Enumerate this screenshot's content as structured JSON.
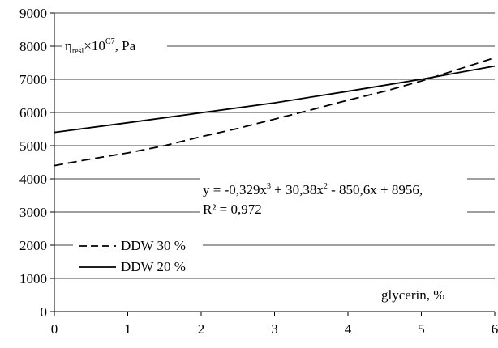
{
  "chart_data": {
    "type": "line",
    "ylabel_parts": {
      "eta": "η",
      "sub": "resl",
      "times_ten": "×10",
      "sup": "C7",
      "unit": ", Pa"
    },
    "xlabel": "glycerin, %",
    "xlim": [
      0,
      6
    ],
    "ylim": [
      0,
      9000
    ],
    "x_ticks": [
      0,
      1,
      2,
      3,
      4,
      5,
      6
    ],
    "y_ticks": [
      0,
      1000,
      2000,
      3000,
      4000,
      5000,
      6000,
      7000,
      8000,
      9000
    ],
    "grid": {
      "horizontal": true,
      "vertical": false
    },
    "series": [
      {
        "name": "DDW 30 %",
        "style": "dashed",
        "x": [
          0,
          0.5,
          1,
          1.5,
          2,
          2.5,
          3,
          3.5,
          4,
          4.5,
          5,
          5.5,
          6
        ],
        "y": [
          4400,
          4600,
          4780,
          5000,
          5270,
          5520,
          5800,
          6080,
          6370,
          6640,
          6950,
          7300,
          7650
        ]
      },
      {
        "name": "DDW 20 %",
        "style": "solid",
        "x": [
          0,
          1,
          2,
          3,
          4,
          5,
          6
        ],
        "y": [
          5400,
          5690,
          5990,
          6290,
          6640,
          7000,
          7400
        ]
      }
    ],
    "equation": {
      "line1_parts": [
        "y = -0,329x",
        "3",
        " + 30,38x",
        "2",
        " - 850,6x + 8956,"
      ],
      "line2": "R² = 0,972"
    },
    "legend_position": "bottom-left"
  }
}
